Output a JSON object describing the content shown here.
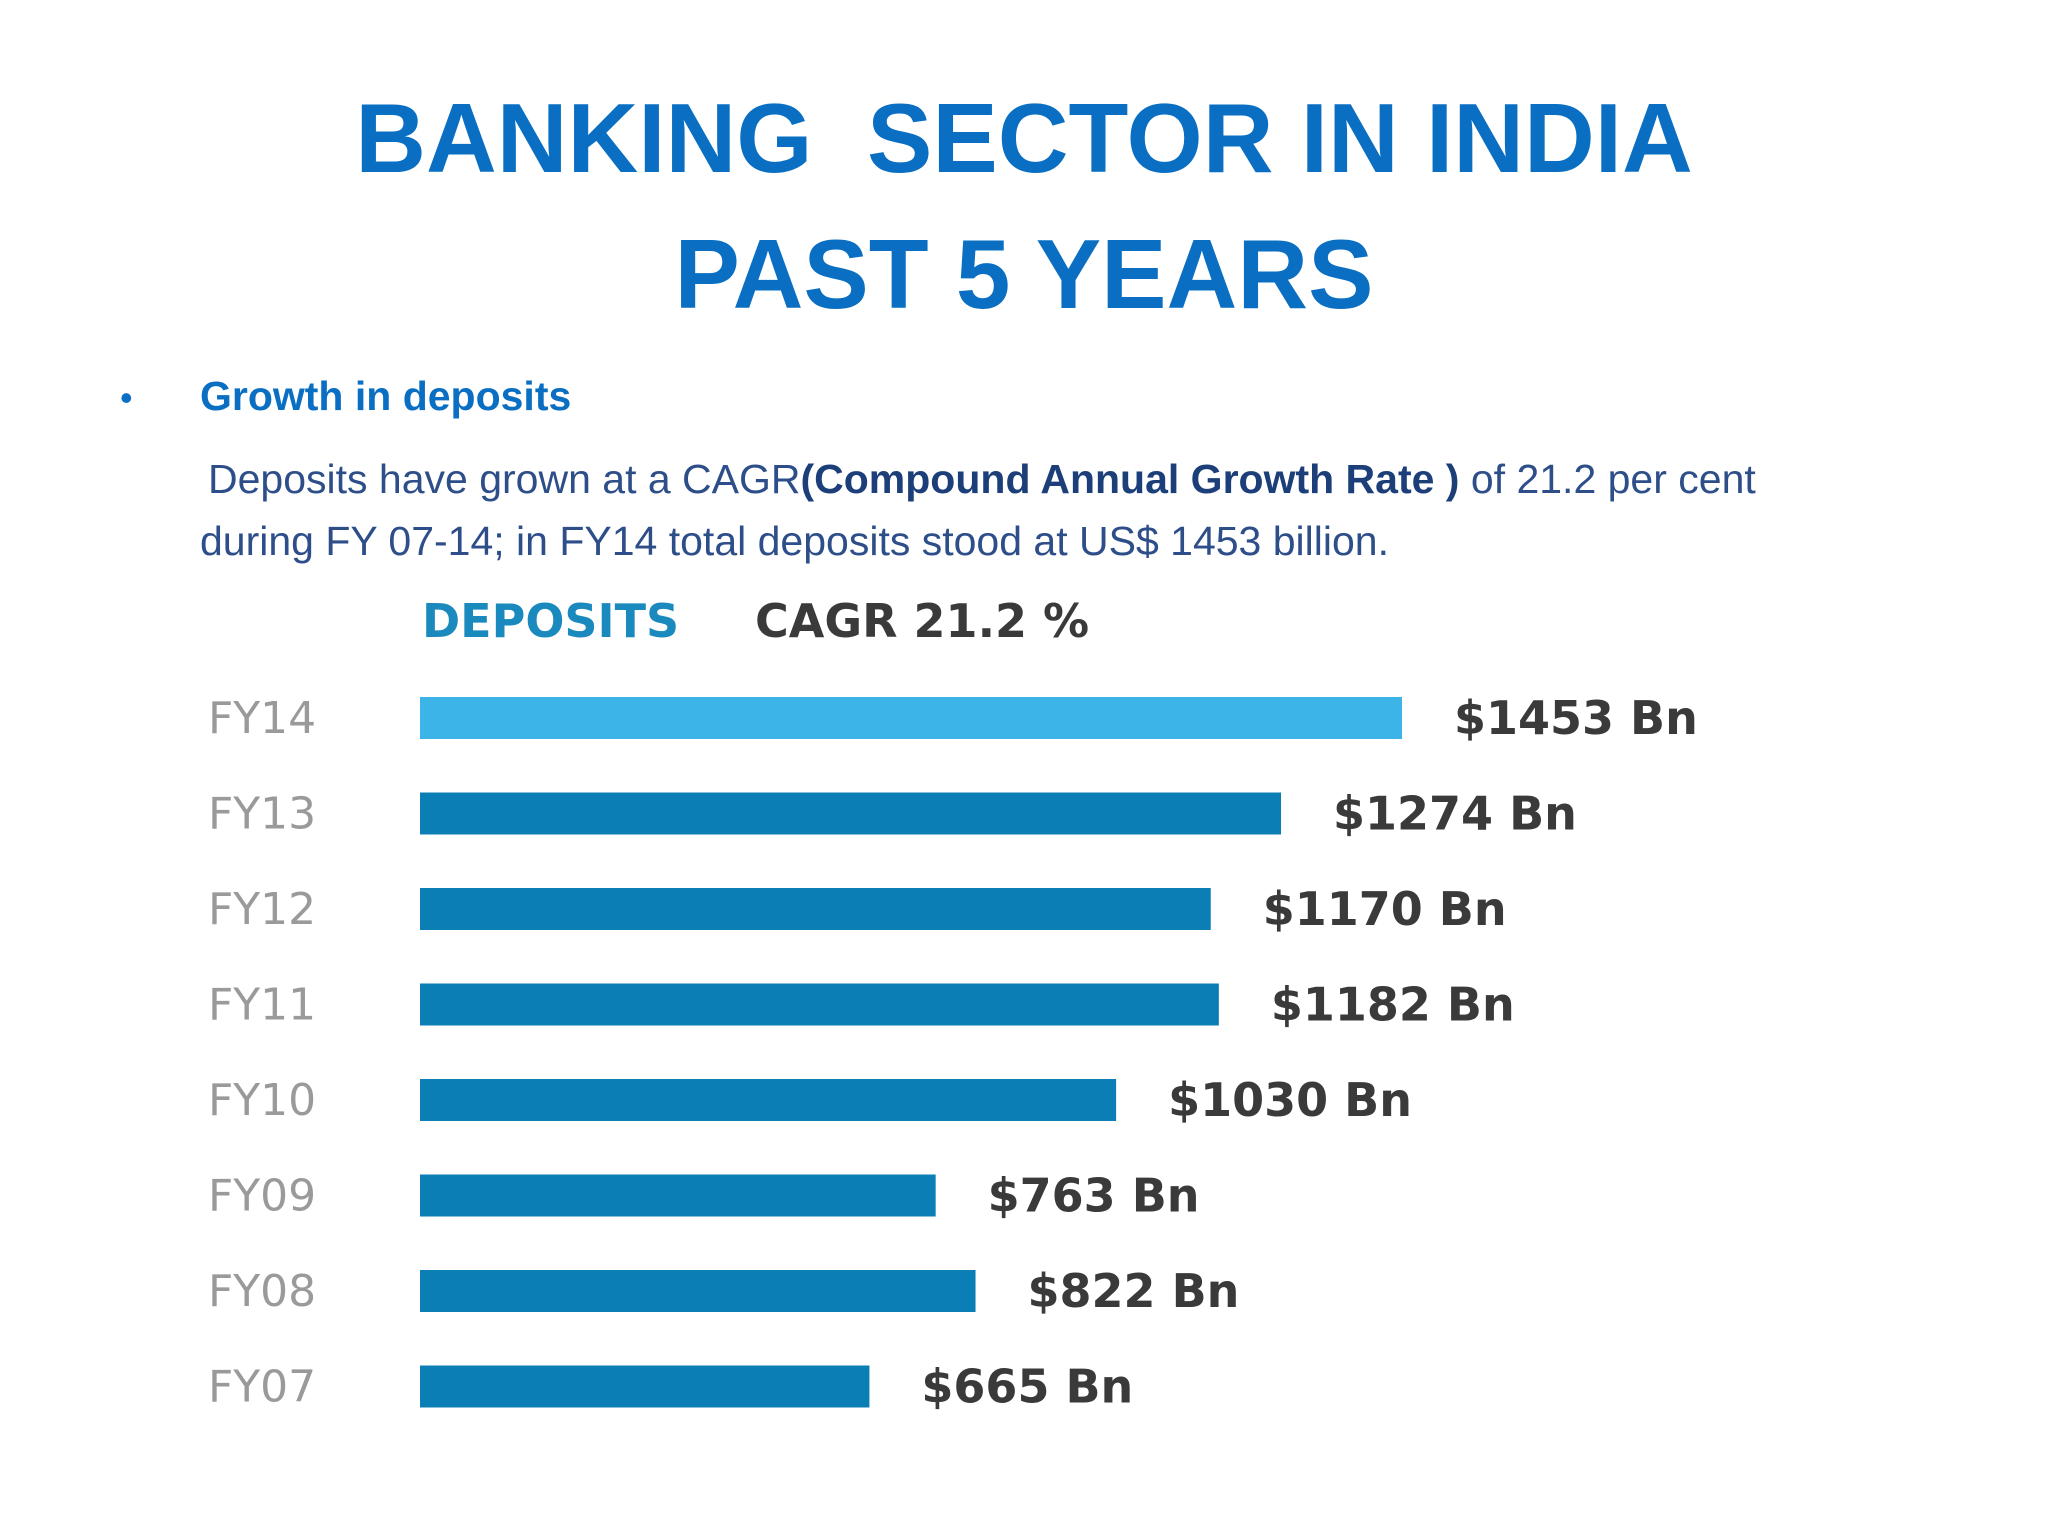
{
  "title": {
    "line1": "BANKING  SECTOR IN INDIA",
    "line2": "PAST 5 YEARS"
  },
  "bullet": {
    "heading": "Growth in deposits",
    "text_part1": "Deposits have grown at a CAGR",
    "text_bold": "(Compound Annual Growth Rate )",
    "text_part2": " of  21.2 per cent during FY 07-14; in FY14 total deposits stood at US$ 1453 billion."
  },
  "chart_data": {
    "type": "bar",
    "orientation": "horizontal",
    "title": "DEPOSITS",
    "subtitle": "CAGR 21.2 %",
    "categories": [
      "FY14",
      "FY13",
      "FY12",
      "FY11",
      "FY10",
      "FY09",
      "FY08",
      "FY07"
    ],
    "values": [
      1453,
      1274,
      1170,
      1182,
      1030,
      763,
      822,
      665
    ],
    "data_labels": [
      "$1453 Bn",
      "$1274 Bn",
      "$1170 Bn",
      "$1182 Bn",
      "$1030 Bn",
      "$763 Bn",
      "$822 Bn",
      "$665 Bn"
    ],
    "xlabel": "",
    "ylabel": "",
    "xlim": [
      0,
      1453
    ],
    "grid": false,
    "legend": "none",
    "highlight_category": "FY14",
    "colors": {
      "bar": "#0b7fb5",
      "highlight": "#3db4e8",
      "title": "#1a89bd",
      "subtitle": "#3a3a3a",
      "category": "#9a9a9a",
      "value_label": "#3a3a3a"
    }
  }
}
